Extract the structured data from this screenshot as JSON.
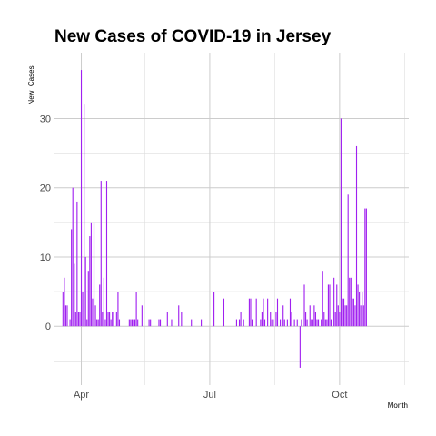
{
  "chart_data": {
    "type": "bar",
    "title": "New Cases of COVID-19 in Jersey",
    "xlabel": "Month",
    "ylabel": "New_Cases",
    "x_axis": {
      "type": "date",
      "range": [
        "2020-03-13",
        "2020-11-19"
      ],
      "tick_labels": [
        {
          "date": "2020-04-01",
          "label": "Apr"
        },
        {
          "date": "2020-07-01",
          "label": "Jul"
        },
        {
          "date": "2020-10-01",
          "label": "Oct"
        }
      ],
      "minor_grid": [
        "2020-05-16",
        "2020-08-16",
        "2020-11-16"
      ]
    },
    "ylim": [
      -8.5,
      39.5
    ],
    "y_ticks": [
      0,
      10,
      20,
      30
    ],
    "y_minor_grid": [
      -5,
      5,
      15,
      25,
      35
    ],
    "grid": true,
    "color": "#a020f0",
    "series": [
      {
        "points": [
          {
            "date": "2020-03-19",
            "value": 5
          },
          {
            "date": "2020-03-20",
            "value": 7
          },
          {
            "date": "2020-03-21",
            "value": 3
          },
          {
            "date": "2020-03-22",
            "value": 3
          },
          {
            "date": "2020-03-24",
            "value": 1
          },
          {
            "date": "2020-03-25",
            "value": 14
          },
          {
            "date": "2020-03-26",
            "value": 20
          },
          {
            "date": "2020-03-27",
            "value": 9
          },
          {
            "date": "2020-03-28",
            "value": 2
          },
          {
            "date": "2020-03-29",
            "value": 18
          },
          {
            "date": "2020-03-30",
            "value": 2
          },
          {
            "date": "2020-03-31",
            "value": 2
          },
          {
            "date": "2020-04-01",
            "value": 37
          },
          {
            "date": "2020-04-02",
            "value": 5
          },
          {
            "date": "2020-04-03",
            "value": 32
          },
          {
            "date": "2020-04-04",
            "value": 10
          },
          {
            "date": "2020-04-05",
            "value": 1
          },
          {
            "date": "2020-04-06",
            "value": 8
          },
          {
            "date": "2020-04-07",
            "value": 13
          },
          {
            "date": "2020-04-08",
            "value": 15
          },
          {
            "date": "2020-04-09",
            "value": 4
          },
          {
            "date": "2020-04-10",
            "value": 15
          },
          {
            "date": "2020-04-11",
            "value": 3
          },
          {
            "date": "2020-04-12",
            "value": 1
          },
          {
            "date": "2020-04-13",
            "value": 1
          },
          {
            "date": "2020-04-14",
            "value": 6
          },
          {
            "date": "2020-04-15",
            "value": 21
          },
          {
            "date": "2020-04-16",
            "value": 2
          },
          {
            "date": "2020-04-17",
            "value": 7
          },
          {
            "date": "2020-04-18",
            "value": 1
          },
          {
            "date": "2020-04-19",
            "value": 21
          },
          {
            "date": "2020-04-20",
            "value": 2
          },
          {
            "date": "2020-04-21",
            "value": 2
          },
          {
            "date": "2020-04-22",
            "value": 1
          },
          {
            "date": "2020-04-23",
            "value": 2
          },
          {
            "date": "2020-04-24",
            "value": 2
          },
          {
            "date": "2020-04-26",
            "value": 2
          },
          {
            "date": "2020-04-27",
            "value": 5
          },
          {
            "date": "2020-04-28",
            "value": 1
          },
          {
            "date": "2020-05-05",
            "value": 1
          },
          {
            "date": "2020-05-06",
            "value": 1
          },
          {
            "date": "2020-05-07",
            "value": 1
          },
          {
            "date": "2020-05-08",
            "value": 1
          },
          {
            "date": "2020-05-09",
            "value": 1
          },
          {
            "date": "2020-05-10",
            "value": 5
          },
          {
            "date": "2020-05-11",
            "value": 1
          },
          {
            "date": "2020-05-14",
            "value": 3
          },
          {
            "date": "2020-05-19",
            "value": 1
          },
          {
            "date": "2020-05-20",
            "value": 1
          },
          {
            "date": "2020-05-26",
            "value": 1
          },
          {
            "date": "2020-05-27",
            "value": 1
          },
          {
            "date": "2020-06-01",
            "value": 2
          },
          {
            "date": "2020-06-04",
            "value": 1
          },
          {
            "date": "2020-06-09",
            "value": 3
          },
          {
            "date": "2020-06-11",
            "value": 2
          },
          {
            "date": "2020-06-18",
            "value": 1
          },
          {
            "date": "2020-06-25",
            "value": 1
          },
          {
            "date": "2020-07-04",
            "value": 5
          },
          {
            "date": "2020-07-11",
            "value": 4
          },
          {
            "date": "2020-07-20",
            "value": 1
          },
          {
            "date": "2020-07-22",
            "value": 1
          },
          {
            "date": "2020-07-23",
            "value": 2
          },
          {
            "date": "2020-07-25",
            "value": 1
          },
          {
            "date": "2020-07-29",
            "value": 4
          },
          {
            "date": "2020-07-30",
            "value": 4
          },
          {
            "date": "2020-07-31",
            "value": 1
          },
          {
            "date": "2020-08-03",
            "value": 4
          },
          {
            "date": "2020-08-06",
            "value": 1
          },
          {
            "date": "2020-08-07",
            "value": 2
          },
          {
            "date": "2020-08-08",
            "value": 4
          },
          {
            "date": "2020-08-09",
            "value": 1
          },
          {
            "date": "2020-08-11",
            "value": 4
          },
          {
            "date": "2020-08-13",
            "value": 2
          },
          {
            "date": "2020-08-14",
            "value": 1
          },
          {
            "date": "2020-08-15",
            "value": 1
          },
          {
            "date": "2020-08-17",
            "value": 2
          },
          {
            "date": "2020-08-18",
            "value": 4
          },
          {
            "date": "2020-08-20",
            "value": 1
          },
          {
            "date": "2020-08-22",
            "value": 3
          },
          {
            "date": "2020-08-23",
            "value": 1
          },
          {
            "date": "2020-08-25",
            "value": 1
          },
          {
            "date": "2020-08-27",
            "value": 4
          },
          {
            "date": "2020-08-28",
            "value": 2
          },
          {
            "date": "2020-08-30",
            "value": 1
          },
          {
            "date": "2020-09-01",
            "value": 1
          },
          {
            "date": "2020-09-03",
            "value": -6
          },
          {
            "date": "2020-09-04",
            "value": 1
          },
          {
            "date": "2020-09-06",
            "value": 6
          },
          {
            "date": "2020-09-07",
            "value": 2
          },
          {
            "date": "2020-09-08",
            "value": 1
          },
          {
            "date": "2020-09-10",
            "value": 3
          },
          {
            "date": "2020-09-11",
            "value": 1
          },
          {
            "date": "2020-09-12",
            "value": 1
          },
          {
            "date": "2020-09-13",
            "value": 3
          },
          {
            "date": "2020-09-14",
            "value": 2
          },
          {
            "date": "2020-09-15",
            "value": 1
          },
          {
            "date": "2020-09-16",
            "value": 1
          },
          {
            "date": "2020-09-18",
            "value": 1
          },
          {
            "date": "2020-09-19",
            "value": 8
          },
          {
            "date": "2020-09-20",
            "value": 2
          },
          {
            "date": "2020-09-21",
            "value": 1
          },
          {
            "date": "2020-09-22",
            "value": 1
          },
          {
            "date": "2020-09-23",
            "value": 6
          },
          {
            "date": "2020-09-24",
            "value": 6
          },
          {
            "date": "2020-09-25",
            "value": 1
          },
          {
            "date": "2020-09-27",
            "value": 7
          },
          {
            "date": "2020-09-28",
            "value": 2
          },
          {
            "date": "2020-09-29",
            "value": 6
          },
          {
            "date": "2020-09-30",
            "value": 3
          },
          {
            "date": "2020-10-01",
            "value": 2
          },
          {
            "date": "2020-10-02",
            "value": 30
          },
          {
            "date": "2020-10-03",
            "value": 4
          },
          {
            "date": "2020-10-04",
            "value": 4
          },
          {
            "date": "2020-10-05",
            "value": 3
          },
          {
            "date": "2020-10-06",
            "value": 3
          },
          {
            "date": "2020-10-07",
            "value": 19
          },
          {
            "date": "2020-10-08",
            "value": 7
          },
          {
            "date": "2020-10-09",
            "value": 7
          },
          {
            "date": "2020-10-10",
            "value": 4
          },
          {
            "date": "2020-10-11",
            "value": 4
          },
          {
            "date": "2020-10-12",
            "value": 3
          },
          {
            "date": "2020-10-13",
            "value": 26
          },
          {
            "date": "2020-10-14",
            "value": 6
          },
          {
            "date": "2020-10-15",
            "value": 5
          },
          {
            "date": "2020-10-16",
            "value": 3
          },
          {
            "date": "2020-10-17",
            "value": 5
          },
          {
            "date": "2020-10-18",
            "value": 3
          },
          {
            "date": "2020-10-19",
            "value": 17
          },
          {
            "date": "2020-10-20",
            "value": 17
          }
        ]
      }
    ]
  }
}
